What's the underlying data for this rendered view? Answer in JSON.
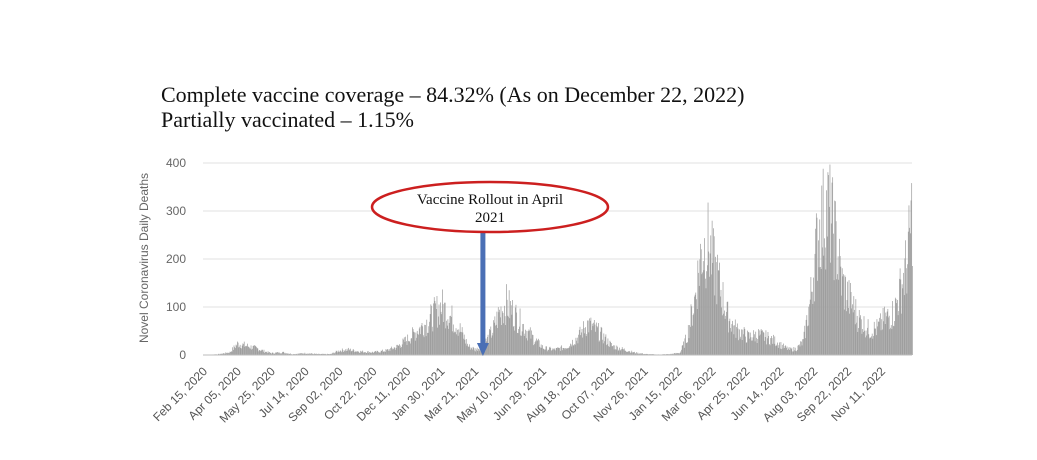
{
  "headline": {
    "line1": "Complete vaccine coverage – 84.32% (As on December 22, 2022)",
    "line2": "Partially vaccinated – 1.15%"
  },
  "annotation": {
    "line1": "Vaccine Rollout in April",
    "line2": "2021",
    "date": "2021-04-01",
    "ellipse_color": "#cc1f1f",
    "arrow_color": "#4a6fb5"
  },
  "chart_data": {
    "type": "bar",
    "title": "",
    "ylabel": "Novel Coronavirus Daily Deaths",
    "xlabel": "",
    "ylim": [
      0,
      400
    ],
    "yticks": [
      0,
      100,
      200,
      300,
      400
    ],
    "grid": true,
    "bar_color": "#9e9e9e",
    "xlim": [
      "2020-02-15",
      "2022-12-22"
    ],
    "xtick_labels": [
      "Feb 15, 2020",
      "Apr 05, 2020",
      "May 25, 2020",
      "Jul 14, 2020",
      "Sep 02, 2020",
      "Oct 22, 2020",
      "Dec 11, 2020",
      "Jan 30, 2021",
      "Mar 21, 2021",
      "May 10, 2021",
      "Jun 29, 2021",
      "Aug 18, 2021",
      "Oct 07, 2021",
      "Nov 26, 2021",
      "Jan 15, 2022",
      "Mar 06, 2022",
      "Apr 25, 2022",
      "Jun 14, 2022",
      "Aug 03, 2022",
      "Sep 22, 2022",
      "Nov 11, 2022"
    ],
    "series": [
      {
        "x": [
          "2020-02-15",
          "2020-03-10",
          "2020-03-25",
          "2020-04-05",
          "2020-04-15",
          "2020-04-25",
          "2020-05-05",
          "2020-05-15",
          "2020-05-25",
          "2020-06-10",
          "2020-06-25",
          "2020-07-05",
          "2020-07-14",
          "2020-08-01",
          "2020-08-20",
          "2020-09-02",
          "2020-09-15",
          "2020-10-01",
          "2020-10-22",
          "2020-11-10",
          "2020-11-25",
          "2020-12-11",
          "2020-12-25",
          "2021-01-10",
          "2021-01-20",
          "2021-01-30",
          "2021-02-10",
          "2021-02-25",
          "2021-03-10",
          "2021-03-21",
          "2021-04-01",
          "2021-04-15",
          "2021-04-25",
          "2021-05-05",
          "2021-05-10",
          "2021-05-20",
          "2021-06-01",
          "2021-06-15",
          "2021-06-29",
          "2021-07-15",
          "2021-08-01",
          "2021-08-18",
          "2021-09-01",
          "2021-09-15",
          "2021-10-01",
          "2021-10-07",
          "2021-10-25",
          "2021-11-10",
          "2021-11-26",
          "2021-12-15",
          "2022-01-01",
          "2022-01-15",
          "2022-01-25",
          "2022-02-05",
          "2022-02-15",
          "2022-02-25",
          "2022-03-06",
          "2022-03-15",
          "2022-03-25",
          "2022-04-05",
          "2022-04-15",
          "2022-04-25",
          "2022-05-10",
          "2022-05-25",
          "2022-06-05",
          "2022-06-14",
          "2022-06-25",
          "2022-07-05",
          "2022-07-15",
          "2022-07-25",
          "2022-08-03",
          "2022-08-10",
          "2022-08-20",
          "2022-08-30",
          "2022-09-10",
          "2022-09-22",
          "2022-10-05",
          "2022-10-20",
          "2022-11-01",
          "2022-11-11",
          "2022-11-25",
          "2022-12-05",
          "2022-12-15",
          "2022-12-22"
        ],
        "y": [
          0,
          2,
          6,
          25,
          22,
          18,
          14,
          8,
          4,
          6,
          2,
          3,
          4,
          2,
          2,
          10,
          12,
          8,
          6,
          10,
          18,
          35,
          55,
          75,
          95,
          110,
          90,
          60,
          20,
          12,
          20,
          55,
          95,
          115,
          105,
          85,
          60,
          35,
          15,
          12,
          18,
          40,
          70,
          55,
          30,
          20,
          12,
          5,
          2,
          1,
          2,
          5,
          40,
          120,
          230,
          250,
          200,
          150,
          90,
          60,
          50,
          40,
          45,
          38,
          30,
          20,
          12,
          14,
          30,
          120,
          240,
          300,
          330,
          270,
          160,
          120,
          80,
          55,
          60,
          80,
          95,
          150,
          210,
          330
        ]
      }
    ]
  }
}
